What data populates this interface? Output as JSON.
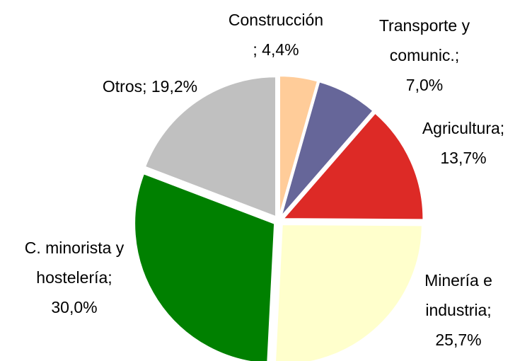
{
  "chart_data": {
    "type": "pie",
    "values": [
      4.4,
      7.0,
      13.7,
      25.7,
      30.0,
      19.2
    ],
    "labels": [
      [
        "Construcción",
        "; 4,4%"
      ],
      [
        "Transporte y",
        "comunic.;",
        "7,0%"
      ],
      [
        "Agricultura;",
        "13,7%"
      ],
      [
        "Minería e",
        "industria;",
        "25,7%"
      ],
      [
        "C. minorista y",
        "hostelería;",
        "30,0%"
      ],
      [
        "Otros; 19,2%"
      ]
    ],
    "colors": [
      "#ffcc99",
      "#666699",
      "#dd2a26",
      "#ffffcc",
      "#008000",
      "#c0c0c0"
    ]
  }
}
